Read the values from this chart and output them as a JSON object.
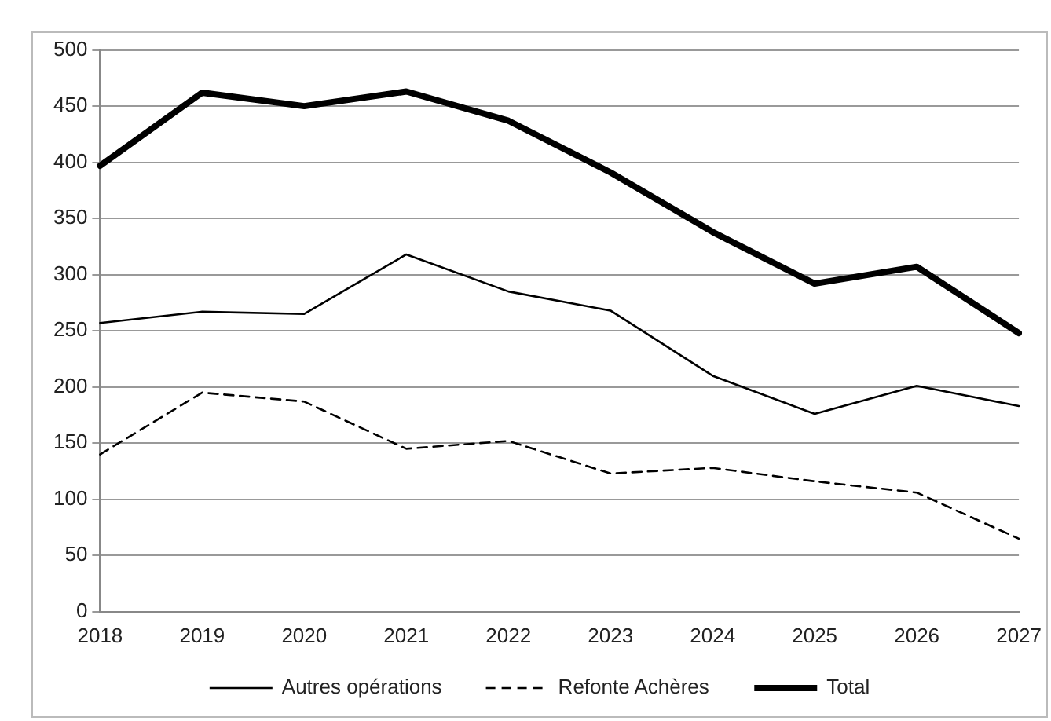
{
  "chart_data": {
    "type": "line",
    "categories": [
      "2018",
      "2019",
      "2020",
      "2021",
      "2022",
      "2023",
      "2024",
      "2025",
      "2026",
      "2027"
    ],
    "series": [
      {
        "name": "Autres opérations",
        "color": "#000000",
        "line_style": "solid",
        "values": [
          257,
          267,
          265,
          318,
          285,
          268,
          210,
          176,
          201,
          183
        ]
      },
      {
        "name": "Refonte Achères",
        "color": "#000000",
        "line_style": "dashed",
        "values": [
          140,
          195,
          187,
          145,
          152,
          123,
          128,
          116,
          106,
          65
        ]
      },
      {
        "name": "Total",
        "color": "#000000",
        "line_style": "solid",
        "values": [
          397,
          462,
          450,
          463,
          437,
          391,
          338,
          292,
          307,
          248
        ]
      }
    ],
    "ylim": [
      0,
      500
    ],
    "yticks": [
      0,
      50,
      100,
      150,
      200,
      250,
      300,
      350,
      400,
      450,
      500
    ],
    "grid": "y",
    "legend": "bottom",
    "marker": "none"
  }
}
